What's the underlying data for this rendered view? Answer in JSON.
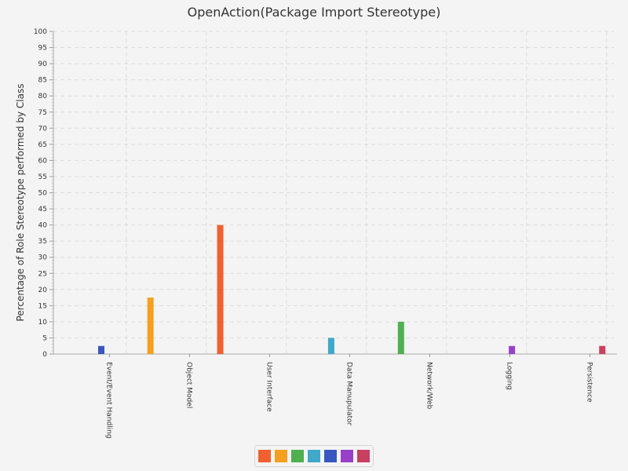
{
  "chart_data": {
    "type": "bar",
    "title": "OpenAction(Package Import Stereotype)",
    "xlabel": "",
    "ylabel": "Percentage of Role Stereotype performed by Class",
    "ylim": [
      0,
      100
    ],
    "yticks": [
      0,
      5,
      10,
      15,
      20,
      25,
      30,
      35,
      40,
      45,
      50,
      55,
      60,
      65,
      70,
      75,
      80,
      85,
      90,
      95,
      100
    ],
    "categories": [
      "Event/Event Handling",
      "Object Model",
      "User Interface",
      "Data Manupulator",
      "Network/Web",
      "Logging",
      "Persistence"
    ],
    "series": [
      {
        "color": "#f06030",
        "values": [
          0,
          0,
          40,
          0,
          0,
          0,
          0
        ]
      },
      {
        "color": "#f5a020",
        "values": [
          0,
          17.5,
          0,
          0,
          0,
          0,
          0
        ]
      },
      {
        "color": "#50b050",
        "values": [
          0,
          0,
          0,
          0,
          10,
          0,
          0
        ]
      },
      {
        "color": "#40a8c8",
        "values": [
          0,
          0,
          0,
          5,
          0,
          0,
          0
        ]
      },
      {
        "color": "#3858c0",
        "values": [
          2.5,
          0,
          0,
          0,
          0,
          0,
          0
        ]
      },
      {
        "color": "#9840c8",
        "values": [
          0,
          0,
          0,
          0,
          0,
          2.5,
          0
        ]
      },
      {
        "color": "#c84060",
        "values": [
          0,
          0,
          0,
          0,
          0,
          0,
          2.5
        ]
      }
    ],
    "grid": true,
    "legend_position": "bottom-center"
  }
}
